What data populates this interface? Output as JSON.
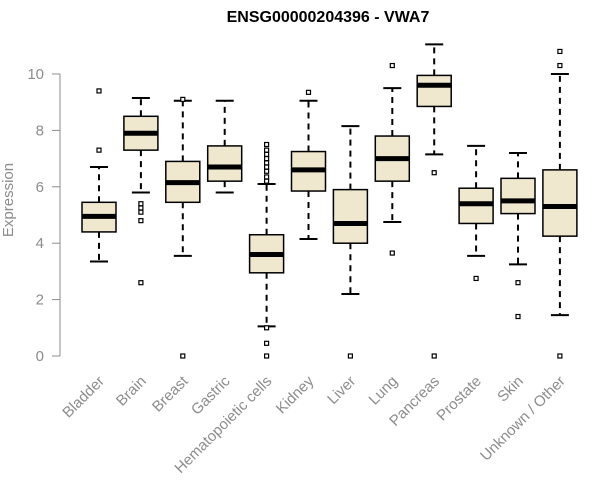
{
  "chart_data": {
    "type": "boxplot",
    "title": "ENSG00000204396 - VWA7",
    "xlabel": "",
    "ylabel": "Expression",
    "ylim": [
      0,
      11.2
    ],
    "yticks": [
      0,
      2,
      4,
      6,
      8,
      10
    ],
    "grid": false,
    "legend": "none",
    "colors": {
      "box_fill": "#efe8cf",
      "stroke": "#000000",
      "axis": "#8c8c8c"
    },
    "categories": [
      "Bladder",
      "Brain",
      "Breast",
      "Gastric",
      "Hematopoietic cells",
      "Kidney",
      "Liver",
      "Lung",
      "Pancreas",
      "Prostate",
      "Skin",
      "Unknown / Other"
    ],
    "boxes": [
      {
        "category": "Bladder",
        "whisker_low": 3.35,
        "q1": 4.4,
        "median": 4.95,
        "q3": 5.45,
        "whisker_high": 6.7,
        "outliers": [
          9.4,
          7.3
        ]
      },
      {
        "category": "Brain",
        "whisker_low": 5.8,
        "q1": 7.3,
        "median": 7.9,
        "q3": 8.5,
        "whisker_high": 9.15,
        "outliers": [
          2.6,
          4.8,
          5.1,
          5.25,
          5.4
        ]
      },
      {
        "category": "Breast",
        "whisker_low": 3.55,
        "q1": 5.45,
        "median": 6.15,
        "q3": 6.9,
        "whisker_high": 9.05,
        "outliers": [
          0.0,
          9.1
        ]
      },
      {
        "category": "Gastric",
        "whisker_low": 5.8,
        "q1": 6.2,
        "median": 6.7,
        "q3": 7.45,
        "whisker_high": 9.05,
        "outliers": []
      },
      {
        "category": "Hematopoietic cells",
        "whisker_low": 1.05,
        "q1": 2.95,
        "median": 3.6,
        "q3": 4.3,
        "whisker_high": 6.1,
        "outliers": [
          0.0,
          0.45,
          1.0,
          6.2,
          6.35,
          6.55,
          6.7,
          6.85,
          7.0,
          7.15,
          7.3,
          7.5
        ]
      },
      {
        "category": "Kidney",
        "whisker_low": 4.15,
        "q1": 5.85,
        "median": 6.6,
        "q3": 7.25,
        "whisker_high": 9.05,
        "outliers": [
          9.35
        ]
      },
      {
        "category": "Liver",
        "whisker_low": 2.2,
        "q1": 4.0,
        "median": 4.7,
        "q3": 5.9,
        "whisker_high": 8.15,
        "outliers": [
          0.0
        ]
      },
      {
        "category": "Lung",
        "whisker_low": 4.75,
        "q1": 6.2,
        "median": 7.0,
        "q3": 7.8,
        "whisker_high": 9.5,
        "outliers": [
          3.65,
          10.3
        ]
      },
      {
        "category": "Pancreas",
        "whisker_low": 7.15,
        "q1": 8.85,
        "median": 9.6,
        "q3": 9.95,
        "whisker_high": 11.05,
        "outliers": [
          0.0,
          6.5
        ]
      },
      {
        "category": "Prostate",
        "whisker_low": 3.55,
        "q1": 4.7,
        "median": 5.4,
        "q3": 5.95,
        "whisker_high": 7.45,
        "outliers": [
          2.75
        ]
      },
      {
        "category": "Skin",
        "whisker_low": 3.25,
        "q1": 5.05,
        "median": 5.5,
        "q3": 6.3,
        "whisker_high": 7.2,
        "outliers": [
          1.4,
          2.6
        ]
      },
      {
        "category": "Unknown / Other",
        "whisker_low": 1.45,
        "q1": 4.25,
        "median": 5.3,
        "q3": 6.6,
        "whisker_high": 10.0,
        "outliers": [
          0.0,
          10.3,
          10.8
        ]
      }
    ]
  }
}
